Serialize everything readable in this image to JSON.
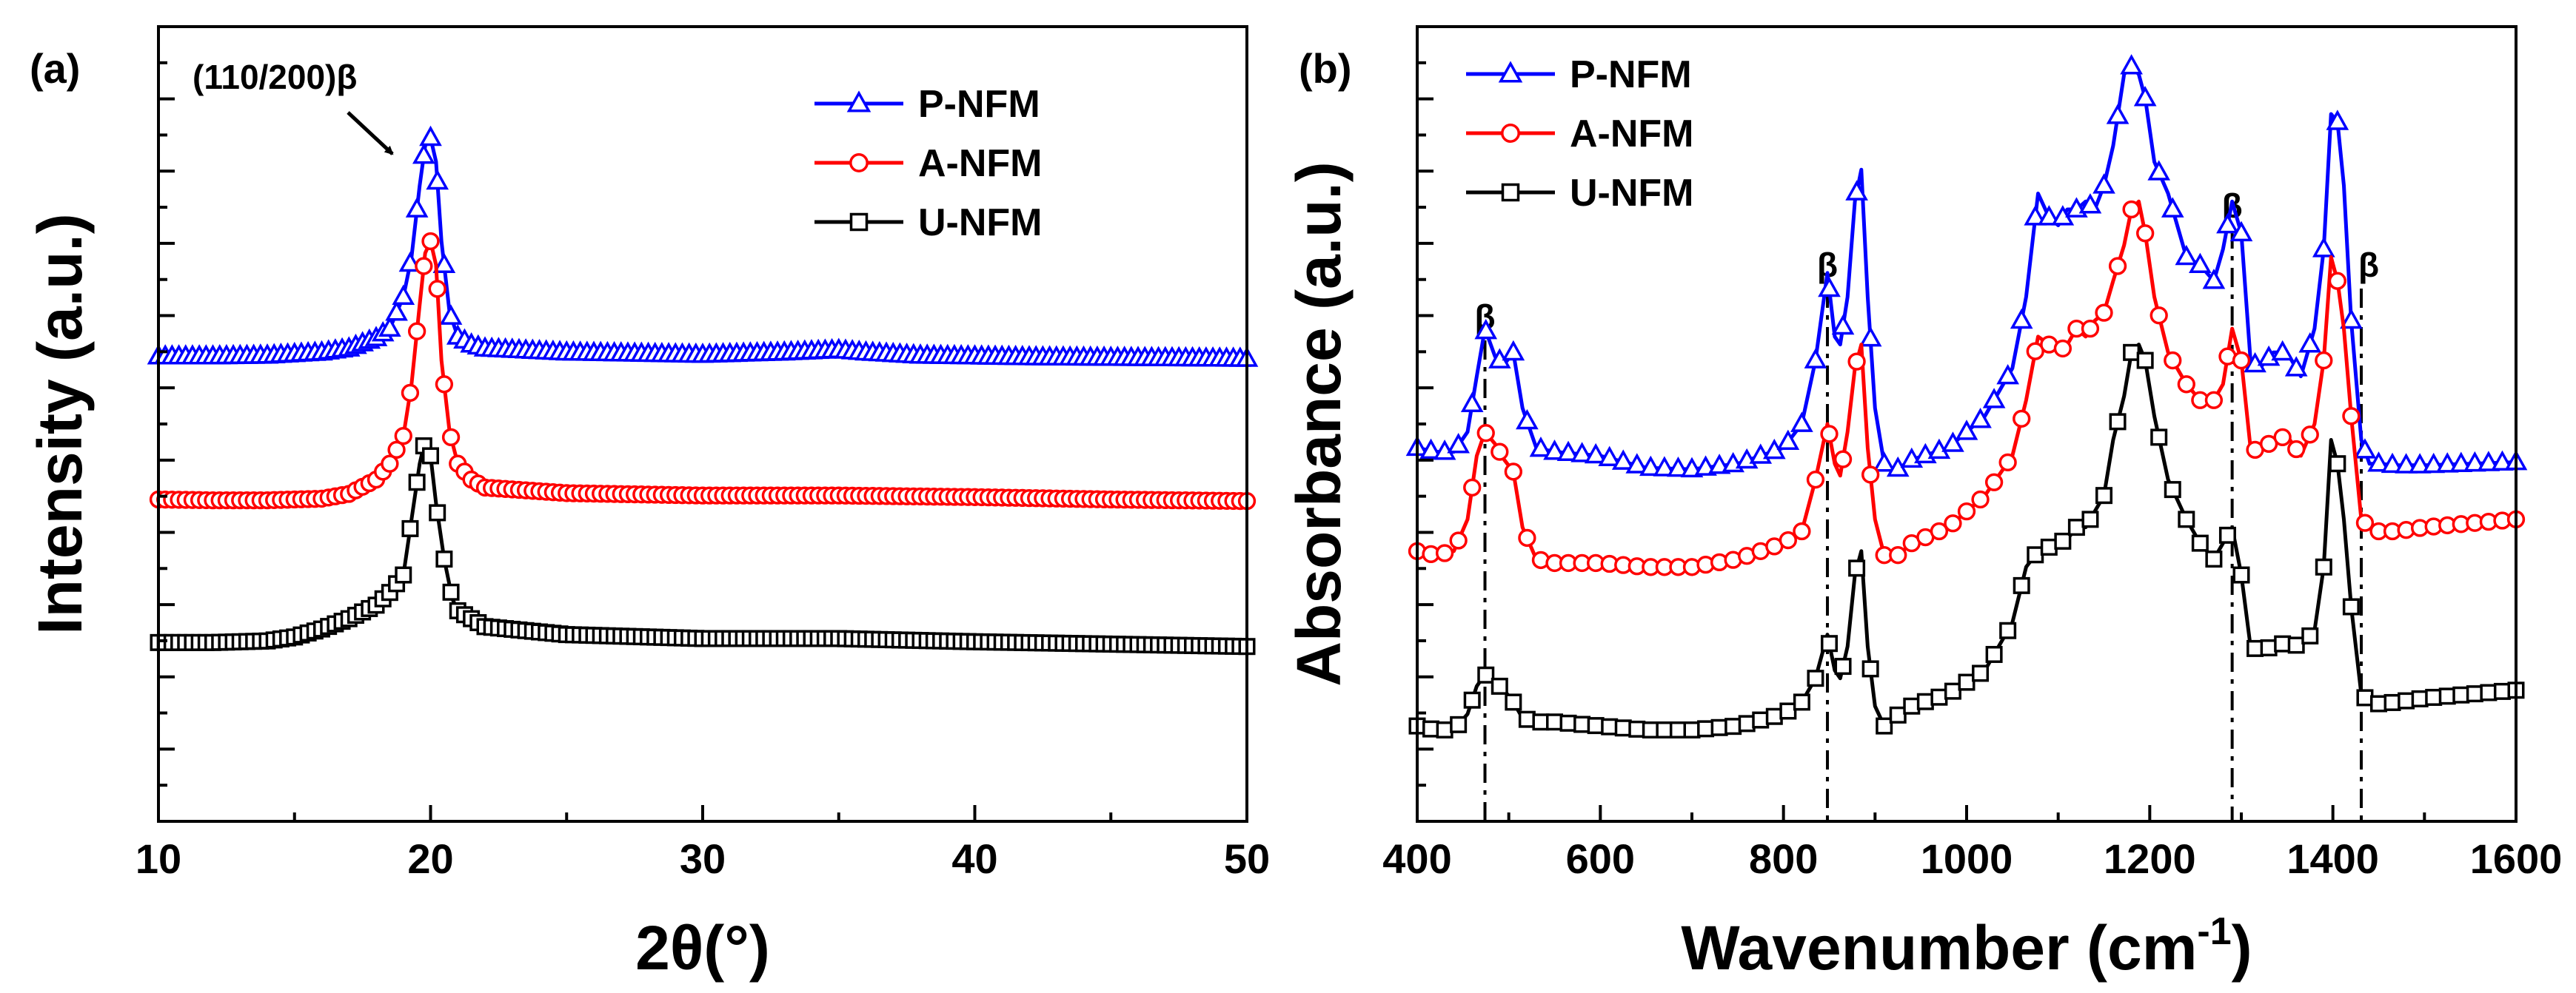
{
  "chart_data": [
    {
      "panel_label": "(a)",
      "type": "line",
      "xlabel": "2θ(°)",
      "ylabel": "Intensity (a.u.)",
      "xlim": [
        10,
        50
      ],
      "ylim": [
        0,
        100
      ],
      "x_ticks": [
        10,
        20,
        30,
        40,
        50
      ],
      "x_tick_labels": [
        "10",
        "20",
        "30",
        "40",
        "50"
      ],
      "y_tick_labels_shown": false,
      "legend_position": "top-right",
      "annotation": {
        "text": "(110/200)β",
        "target_x": 20
      },
      "series": [
        {
          "name": "P-NFM",
          "color": "#0000ff",
          "marker": "triangle",
          "x": [
            10,
            12,
            14,
            16,
            17,
            18,
            18.5,
            19,
            19.3,
            19.6,
            19.8,
            20,
            20.2,
            20.4,
            20.7,
            21,
            21.5,
            22,
            25,
            30,
            33,
            35,
            36,
            38,
            42,
            46,
            50
          ],
          "values": [
            58.5,
            58.5,
            58.6,
            59,
            59.5,
            60.8,
            62,
            66,
            71,
            80,
            85,
            86,
            83,
            73,
            64,
            61,
            60,
            59.5,
            59,
            58.7,
            59,
            59.3,
            59,
            58.6,
            58.4,
            58.3,
            58.2
          ]
        },
        {
          "name": "A-NFM",
          "color": "#ff0000",
          "marker": "circle",
          "x": [
            10,
            12,
            14,
            16,
            17,
            18,
            18.5,
            19,
            19.3,
            19.6,
            19.8,
            20,
            20.2,
            20.4,
            20.7,
            21,
            21.5,
            22,
            25,
            30,
            35,
            40,
            45,
            50
          ],
          "values": [
            40.5,
            40.4,
            40.4,
            40.6,
            41.2,
            43,
            45,
            48.5,
            55,
            65,
            71.5,
            73,
            70,
            58,
            49,
            45,
            43,
            42,
            41.3,
            41,
            41,
            40.8,
            40.5,
            40.3
          ]
        },
        {
          "name": "U-NFM",
          "color": "#000000",
          "marker": "square",
          "x": [
            10,
            12,
            14,
            15,
            16,
            17,
            18,
            18.5,
            19,
            19.3,
            19.6,
            19.8,
            20,
            20.2,
            20.5,
            20.8,
            21,
            22,
            25,
            30,
            35,
            40,
            45,
            50
          ],
          "values": [
            22.5,
            22.5,
            22.7,
            23.2,
            24.2,
            25.5,
            27.2,
            28.8,
            31,
            38,
            45,
            48,
            46,
            40,
            33,
            28,
            26.5,
            24.5,
            23.5,
            23,
            23,
            22.6,
            22.3,
            22
          ]
        }
      ]
    },
    {
      "panel_label": "(b)",
      "type": "line",
      "xlabel": "Wavenumber (cm",
      "xlabel_superscript": "-1",
      "xlabel_suffix": ")",
      "ylabel": "Absorbance (a.u.)",
      "xlim": [
        400,
        1600
      ],
      "ylim": [
        0,
        100
      ],
      "x_ticks": [
        400,
        600,
        800,
        1000,
        1200,
        1400,
        1600
      ],
      "x_tick_labels": [
        "400",
        "600",
        "800",
        "1000",
        "1200",
        "1400",
        "1600"
      ],
      "y_tick_labels_shown": false,
      "legend_position": "top-left",
      "beta_markers": [
        {
          "x": 474,
          "label": "β"
        },
        {
          "x": 848,
          "label": "β"
        },
        {
          "x": 1290,
          "label": "β"
        },
        {
          "x": 1431,
          "label": "β"
        }
      ],
      "series": [
        {
          "name": "P-NFM",
          "color": "#0000ff",
          "marker": "triangle",
          "x": [
            400,
            420,
            440,
            455,
            465,
            474,
            485,
            495,
            505,
            515,
            530,
            550,
            600,
            650,
            700,
            750,
            800,
            820,
            835,
            848,
            856,
            862,
            870,
            878,
            885,
            892,
            900,
            910,
            920,
            940,
            980,
            1020,
            1050,
            1065,
            1078,
            1090,
            1100,
            1110,
            1120,
            1130,
            1140,
            1150,
            1160,
            1172,
            1180,
            1188,
            1195,
            1205,
            1220,
            1240,
            1255,
            1270,
            1280,
            1290,
            1300,
            1310,
            1320,
            1335,
            1350,
            1365,
            1380,
            1390,
            1398,
            1405,
            1412,
            1420,
            1431,
            1440,
            1450,
            1470,
            1500,
            1550,
            1600
          ],
          "values": [
            47,
            46.5,
            46.5,
            49,
            56,
            62,
            58.5,
            57.5,
            59,
            52,
            47,
            46.5,
            46,
            44.5,
            44.3,
            45,
            47,
            50,
            58,
            69,
            61,
            60,
            66,
            78,
            82,
            66,
            52,
            45,
            44,
            45.5,
            47,
            51,
            57,
            66,
            79,
            76,
            75,
            77,
            77,
            78,
            77,
            80,
            85,
            94,
            95,
            94,
            91,
            83,
            79,
            71,
            70,
            68,
            72,
            78,
            74,
            58,
            57,
            59,
            59,
            56,
            62,
            72,
            89,
            88,
            80,
            63,
            48,
            45,
            45,
            44.8,
            44.8,
            45,
            45.2
          ]
        },
        {
          "name": "A-NFM",
          "color": "#ff0000",
          "marker": "circle",
          "x": [
            400,
            420,
            440,
            455,
            465,
            474,
            485,
            495,
            505,
            515,
            530,
            550,
            600,
            650,
            700,
            750,
            800,
            820,
            835,
            848,
            856,
            862,
            870,
            878,
            885,
            892,
            900,
            910,
            920,
            940,
            980,
            1020,
            1050,
            1065,
            1078,
            1090,
            1100,
            1110,
            1120,
            1130,
            1140,
            1150,
            1160,
            1172,
            1180,
            1188,
            1195,
            1205,
            1220,
            1240,
            1255,
            1270,
            1280,
            1290,
            1300,
            1310,
            1320,
            1335,
            1350,
            1365,
            1380,
            1390,
            1398,
            1405,
            1412,
            1420,
            1431,
            1440,
            1450,
            1470,
            1500,
            1550,
            1600
          ],
          "values": [
            34,
            33.5,
            34,
            38,
            46,
            49,
            47.5,
            45.5,
            44,
            37,
            33,
            32.5,
            32.5,
            32,
            32,
            33,
            35,
            36.5,
            43,
            50,
            45,
            43.5,
            49,
            57,
            60,
            47,
            38,
            33.5,
            33,
            35,
            37,
            41,
            46,
            53,
            61,
            60,
            59,
            60,
            62,
            61,
            63,
            64,
            68,
            72.5,
            77,
            78,
            74,
            66,
            59,
            55,
            53,
            53,
            55,
            62,
            58,
            47,
            46.5,
            48,
            48.5,
            46,
            50,
            58,
            71,
            68,
            62,
            51,
            38,
            37,
            36.5,
            36.5,
            37,
            37.5,
            38
          ]
        },
        {
          "name": "U-NFM",
          "color": "#000000",
          "marker": "square",
          "x": [
            400,
            420,
            440,
            455,
            465,
            474,
            485,
            495,
            505,
            515,
            530,
            550,
            600,
            650,
            700,
            750,
            800,
            820,
            835,
            848,
            856,
            862,
            870,
            878,
            885,
            892,
            900,
            910,
            920,
            940,
            980,
            1020,
            1050,
            1065,
            1078,
            1090,
            1100,
            1110,
            1120,
            1130,
            1140,
            1150,
            1160,
            1172,
            1180,
            1188,
            1195,
            1205,
            1220,
            1240,
            1255,
            1270,
            1280,
            1290,
            1300,
            1310,
            1320,
            1335,
            1350,
            1365,
            1380,
            1390,
            1398,
            1405,
            1412,
            1420,
            1431,
            1440,
            1450,
            1470,
            1500,
            1550,
            1600
          ],
          "values": [
            12,
            11.5,
            11.5,
            13.5,
            17,
            18.5,
            17.5,
            16.5,
            15,
            13,
            12.5,
            12.5,
            12,
            11.5,
            11.5,
            12,
            13.5,
            15,
            18,
            23.5,
            19,
            18,
            22,
            31,
            34,
            22,
            14.5,
            12,
            13,
            14.5,
            16,
            19,
            25,
            32,
            34,
            34.5,
            35,
            35.5,
            37,
            37,
            39,
            41,
            48,
            53.5,
            59,
            60,
            58,
            51,
            43,
            38,
            35,
            33,
            35,
            37,
            31,
            22,
            21.5,
            22,
            22.5,
            22,
            24,
            32,
            48,
            45,
            38,
            27,
            16,
            15,
            14.8,
            15,
            15.5,
            16,
            16.5
          ]
        }
      ]
    }
  ]
}
